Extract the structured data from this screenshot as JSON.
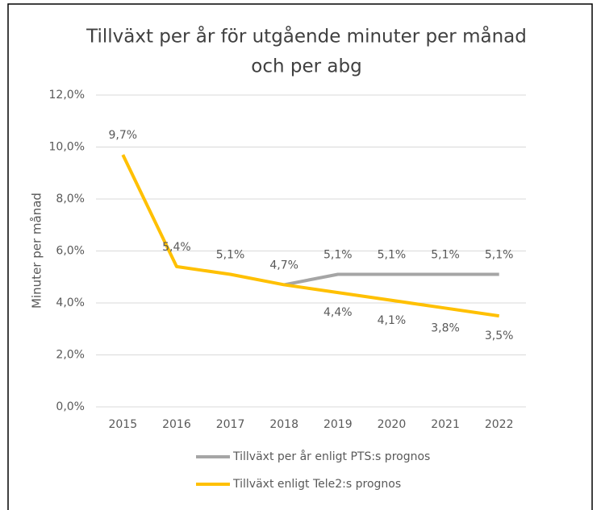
{
  "chart_data": {
    "type": "line",
    "title": [
      "Tillväxt per år för utgående minuter per månad",
      "och per abg"
    ],
    "y_label": "Minuter per månad",
    "categories": [
      "2015",
      "2016",
      "2017",
      "2018",
      "2019",
      "2020",
      "2021",
      "2022"
    ],
    "series": [
      {
        "name": "Tillväxt per år enligt PTS:s prognos",
        "color": "#a5a5a5",
        "values": [
          null,
          null,
          null,
          4.7,
          5.1,
          5.1,
          5.1,
          5.1
        ],
        "value_labels": [
          null,
          null,
          null,
          null,
          "5,1%",
          "5,1%",
          "5,1%",
          "5,1%"
        ]
      },
      {
        "name": "Tillväxt enligt Tele2:s prognos",
        "color": "#ffc000",
        "values": [
          9.7,
          5.4,
          5.1,
          4.7,
          4.4,
          4.1,
          3.8,
          3.5
        ],
        "value_labels": [
          "9,7%",
          "5,4%",
          "5,1%",
          "4,7%",
          "4,4%",
          "4,1%",
          "3,8%",
          "3,5%"
        ]
      }
    ],
    "ylim": [
      0,
      12
    ],
    "yticks": [
      {
        "value": 0,
        "label": "0,0%"
      },
      {
        "value": 2,
        "label": "2,0%"
      },
      {
        "value": 4,
        "label": "4,0%"
      },
      {
        "value": 6,
        "label": "6,0%"
      },
      {
        "value": 8,
        "label": "8,0%"
      },
      {
        "value": 10,
        "label": "10,0%"
      },
      {
        "value": 12,
        "label": "12,0%"
      }
    ],
    "grid": true
  }
}
